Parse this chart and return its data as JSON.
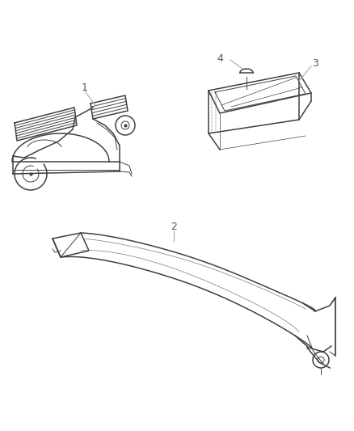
{
  "bg_color": "#ffffff",
  "line_color": "#404040",
  "label_color": "#555555",
  "leader_color": "#aaaaaa",
  "fig_width": 4.38,
  "fig_height": 5.33,
  "dpi": 100
}
